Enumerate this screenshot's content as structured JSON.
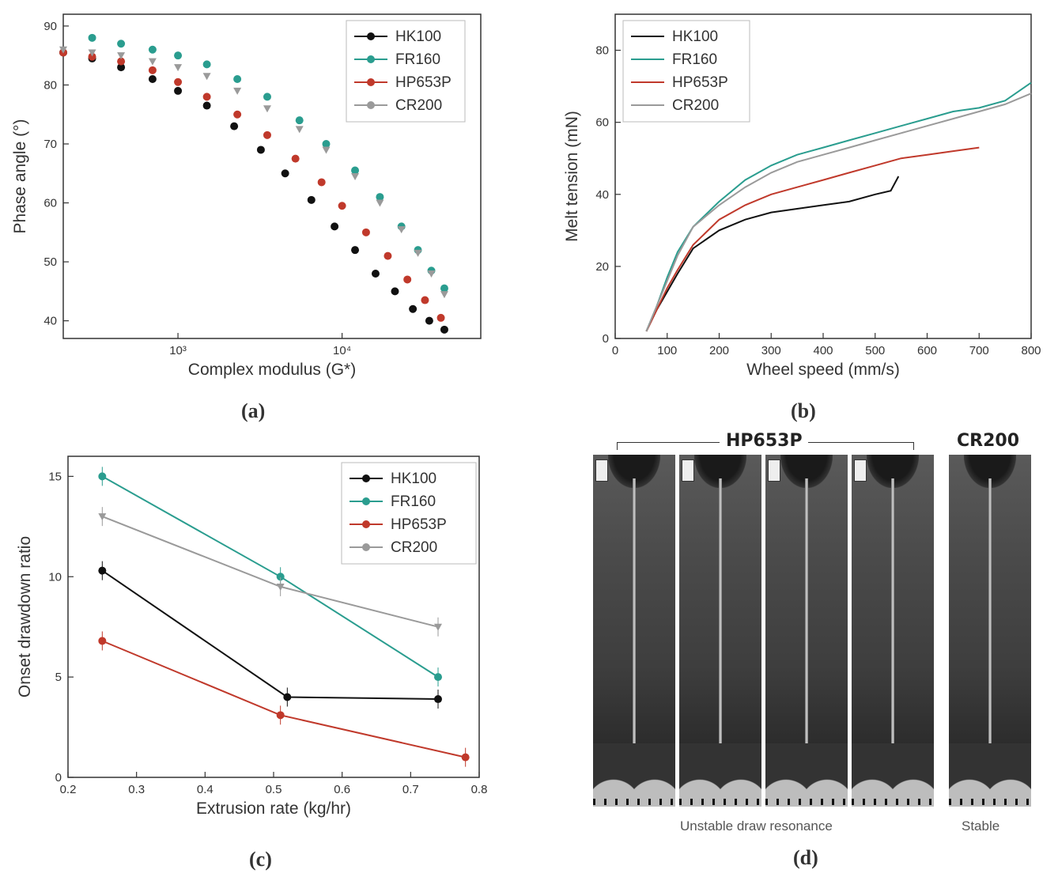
{
  "colors": {
    "HK100": "#111111",
    "FR160": "#2a9d8f",
    "HP653P": "#c0392b",
    "CR200": "#9a9a9a",
    "axis": "#333333"
  },
  "panel_a": {
    "caption_letter": "a",
    "ylabel": "Phase angle (°)",
    "xlabel": "Complex modulus (G*)",
    "y_ticks": [
      "40",
      "50",
      "60",
      "70",
      "80",
      "90"
    ],
    "x_ticks": [
      "10³",
      "10⁴"
    ],
    "legend": [
      "HK100",
      "FR160",
      "HP653P",
      "CR200"
    ]
  },
  "panel_b": {
    "caption_letter": "b",
    "ylabel": "Melt tension (mN)",
    "xlabel": "Wheel speed (mm/s)",
    "y_ticks": [
      "0",
      "20",
      "40",
      "60",
      "80"
    ],
    "x_ticks": [
      "0",
      "100",
      "200",
      "300",
      "400",
      "500",
      "600",
      "700",
      "800"
    ],
    "legend": [
      "HK100",
      "FR160",
      "HP653P",
      "CR200"
    ]
  },
  "panel_c": {
    "caption_letter": "c",
    "ylabel": "Onset drawdown ratio",
    "xlabel": "Extrusion rate (kg/hr)",
    "y_ticks": [
      "0",
      "5",
      "10",
      "15"
    ],
    "x_ticks": [
      "0.2",
      "0.3",
      "0.4",
      "0.5",
      "0.6",
      "0.7",
      "0.8"
    ],
    "legend": [
      "HK100",
      "FR160",
      "HP653P",
      "CR200"
    ]
  },
  "panel_d": {
    "caption_letter": "d",
    "group_left": "HP653P",
    "group_right": "CR200",
    "label_left": "Unstable draw resonance",
    "label_right": "Stable"
  },
  "chart_data": [
    {
      "type": "scatter",
      "panel": "a",
      "xlabel": "Complex modulus (G*)",
      "ylabel": "Phase angle (°)",
      "xscale": "log",
      "xlim": [
        200,
        70000
      ],
      "ylim": [
        37,
        92
      ],
      "legend_position": "top-right",
      "series": [
        {
          "name": "HK100",
          "points": [
            [
              200,
              85.5
            ],
            [
              300,
              84.5
            ],
            [
              450,
              83
            ],
            [
              700,
              81
            ],
            [
              1000,
              79
            ],
            [
              1500,
              76.5
            ],
            [
              2200,
              73
            ],
            [
              3200,
              69
            ],
            [
              4500,
              65
            ],
            [
              6500,
              60.5
            ],
            [
              9000,
              56
            ],
            [
              12000,
              52
            ],
            [
              16000,
              48
            ],
            [
              21000,
              45
            ],
            [
              27000,
              42
            ],
            [
              34000,
              40
            ],
            [
              42000,
              38.5
            ]
          ]
        },
        {
          "name": "FR160",
          "points": [
            [
              300,
              88
            ],
            [
              450,
              87
            ],
            [
              700,
              86
            ],
            [
              1000,
              85
            ],
            [
              1500,
              83.5
            ],
            [
              2300,
              81
            ],
            [
              3500,
              78
            ],
            [
              5500,
              74
            ],
            [
              8000,
              70
            ],
            [
              12000,
              65.5
            ],
            [
              17000,
              61
            ],
            [
              23000,
              56
            ],
            [
              29000,
              52
            ],
            [
              35000,
              48.5
            ],
            [
              42000,
              45.5
            ]
          ]
        },
        {
          "name": "HP653P",
          "points": [
            [
              200,
              85.5
            ],
            [
              300,
              84.8
            ],
            [
              450,
              84
            ],
            [
              700,
              82.5
            ],
            [
              1000,
              80.5
            ],
            [
              1500,
              78
            ],
            [
              2300,
              75
            ],
            [
              3500,
              71.5
            ],
            [
              5200,
              67.5
            ],
            [
              7500,
              63.5
            ],
            [
              10000,
              59.5
            ],
            [
              14000,
              55
            ],
            [
              19000,
              51
            ],
            [
              25000,
              47
            ],
            [
              32000,
              43.5
            ],
            [
              40000,
              40.5
            ]
          ]
        },
        {
          "name": "CR200",
          "points": [
            [
              200,
              86
            ],
            [
              300,
              85.5
            ],
            [
              450,
              85
            ],
            [
              700,
              84
            ],
            [
              1000,
              83
            ],
            [
              1500,
              81.5
            ],
            [
              2300,
              79
            ],
            [
              3500,
              76
            ],
            [
              5500,
              72.5
            ],
            [
              8000,
              69
            ],
            [
              12000,
              64.5
            ],
            [
              17000,
              60
            ],
            [
              23000,
              55.5
            ],
            [
              29000,
              51.5
            ],
            [
              35000,
              48
            ],
            [
              42000,
              44.5
            ]
          ]
        }
      ]
    },
    {
      "type": "line",
      "panel": "b",
      "xlabel": "Wheel speed (mm/s)",
      "ylabel": "Melt tension (mN)",
      "xlim": [
        0,
        800
      ],
      "ylim": [
        0,
        90
      ],
      "legend_position": "top-left",
      "series": [
        {
          "name": "HK100",
          "points": [
            [
              60,
              2
            ],
            [
              80,
              8
            ],
            [
              100,
              13
            ],
            [
              120,
              18
            ],
            [
              150,
              25
            ],
            [
              200,
              30
            ],
            [
              250,
              33
            ],
            [
              300,
              35
            ],
            [
              350,
              36
            ],
            [
              400,
              37
            ],
            [
              450,
              38
            ],
            [
              500,
              40
            ],
            [
              530,
              41
            ],
            [
              545,
              45
            ]
          ]
        },
        {
          "name": "FR160",
          "points": [
            [
              60,
              2
            ],
            [
              80,
              9
            ],
            [
              100,
              17
            ],
            [
              120,
              24
            ],
            [
              150,
              31
            ],
            [
              200,
              38
            ],
            [
              250,
              44
            ],
            [
              300,
              48
            ],
            [
              350,
              51
            ],
            [
              400,
              53
            ],
            [
              450,
              55
            ],
            [
              500,
              57
            ],
            [
              550,
              59
            ],
            [
              600,
              61
            ],
            [
              650,
              63
            ],
            [
              700,
              64
            ],
            [
              750,
              66
            ],
            [
              800,
              71
            ]
          ]
        },
        {
          "name": "HP653P",
          "points": [
            [
              60,
              2
            ],
            [
              80,
              8
            ],
            [
              100,
              14
            ],
            [
              120,
              19
            ],
            [
              150,
              26
            ],
            [
              200,
              33
            ],
            [
              250,
              37
            ],
            [
              300,
              40
            ],
            [
              350,
              42
            ],
            [
              400,
              44
            ],
            [
              450,
              46
            ],
            [
              500,
              48
            ],
            [
              550,
              50
            ],
            [
              600,
              51
            ],
            [
              650,
              52
            ],
            [
              700,
              53
            ]
          ]
        },
        {
          "name": "CR200",
          "points": [
            [
              60,
              2
            ],
            [
              80,
              9
            ],
            [
              100,
              16
            ],
            [
              120,
              23
            ],
            [
              150,
              31
            ],
            [
              200,
              37
            ],
            [
              250,
              42
            ],
            [
              300,
              46
            ],
            [
              350,
              49
            ],
            [
              400,
              51
            ],
            [
              450,
              53
            ],
            [
              500,
              55
            ],
            [
              550,
              57
            ],
            [
              600,
              59
            ],
            [
              650,
              61
            ],
            [
              700,
              63
            ],
            [
              750,
              65
            ],
            [
              800,
              68
            ]
          ]
        }
      ]
    },
    {
      "type": "line",
      "panel": "c",
      "xlabel": "Extrusion rate (kg/hr)",
      "ylabel": "Onset drawdown ratio",
      "xlim": [
        0.2,
        0.8
      ],
      "ylim": [
        0,
        16
      ],
      "legend_position": "top-right",
      "series": [
        {
          "name": "HK100",
          "points": [
            [
              0.25,
              10.3
            ],
            [
              0.52,
              4
            ],
            [
              0.74,
              3.9
            ]
          ]
        },
        {
          "name": "FR160",
          "points": [
            [
              0.25,
              15
            ],
            [
              0.51,
              10
            ],
            [
              0.74,
              5
            ]
          ]
        },
        {
          "name": "HP653P",
          "points": [
            [
              0.25,
              6.8
            ],
            [
              0.51,
              3.1
            ],
            [
              0.78,
              1
            ]
          ]
        },
        {
          "name": "CR200",
          "points": [
            [
              0.25,
              13
            ],
            [
              0.51,
              9.5
            ],
            [
              0.74,
              7.5
            ]
          ]
        }
      ]
    }
  ]
}
